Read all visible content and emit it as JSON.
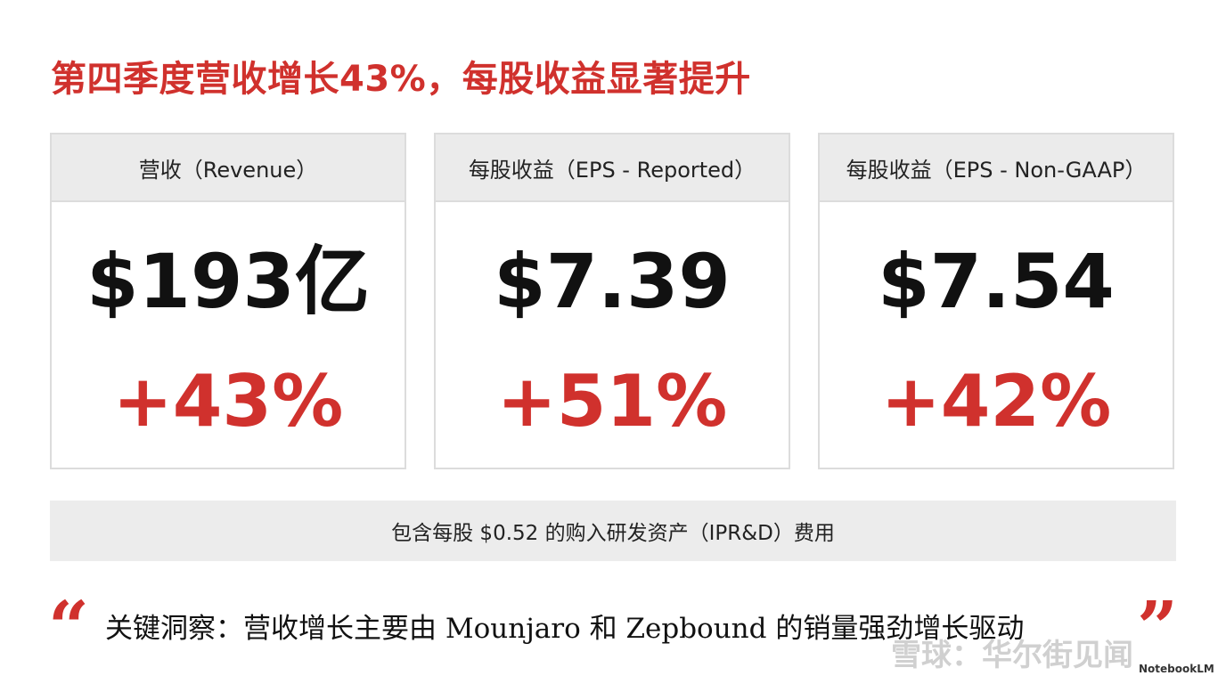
{
  "header": {
    "title": "第四季度营收增长43%，每股收益显著提升"
  },
  "cards": [
    {
      "label": "营收（Revenue）",
      "value": "$193亿",
      "change": "+43%"
    },
    {
      "label": "每股收益（EPS - Reported）",
      "value": "$7.39",
      "change": "+51%"
    },
    {
      "label": "每股收益（EPS - Non-GAAP）",
      "value": "$7.54",
      "change": "+42%"
    }
  ],
  "note": "包含每股 $0.52 的购入研发资产（IPR&D）费用",
  "quote": {
    "open": "“",
    "text": "关键洞察：营收增长主要由 Mounjaro 和 Zepbound 的销量强劲增长驱动",
    "close": "”"
  },
  "watermark": "雪球：华尔街见闻",
  "footer": {
    "brand": "NotebookLM"
  }
}
